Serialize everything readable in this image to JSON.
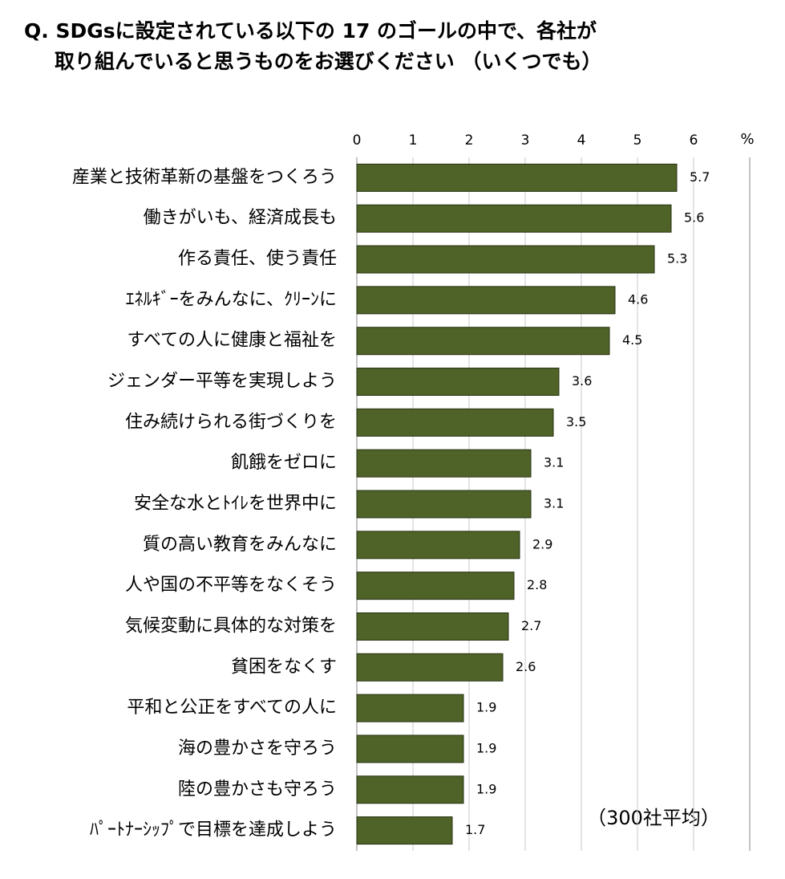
{
  "chart_data": {
    "type": "bar",
    "orientation": "horizontal",
    "title": [
      "Q. SDGsに設定されている以下の 17 のゴールの中で、各社が",
      "取り組んでいると思うものをお選びください （いくつでも）"
    ],
    "x_unit": "%",
    "annotation": "（300社平均）",
    "categories": [
      "産業と技術革新の基盤をつくろう",
      "働きがいも、経済成長も",
      "作る責任、使う責任",
      "ｴﾈﾙｷﾞｰをみんなに、ｸﾘｰﾝに",
      "すべての人に健康と福祉を",
      "ジェンダー平等を実現しよう",
      "住み続けられる街づくりを",
      "飢餓をゼロに",
      "安全な水とﾄｲﾚを世界中に",
      "質の高い教育をみんなに",
      "人や国の不平等をなくそう",
      "気候変動に具体的な対策を",
      "貧困をなくす",
      "平和と公正をすべての人に",
      "海の豊かさを守ろう",
      "陸の豊かさも守ろう",
      "ﾊﾟｰﾄﾅｰｼｯﾌﾟで目標を達成しよう"
    ],
    "values": [
      5.7,
      5.6,
      5.3,
      4.6,
      4.5,
      3.6,
      3.5,
      3.1,
      3.1,
      2.9,
      2.8,
      2.7,
      2.6,
      1.9,
      1.9,
      1.9,
      1.7
    ],
    "color": "#4f6228",
    "xlim": [
      0,
      7
    ],
    "xticks": [
      0,
      1,
      2,
      3,
      4,
      5,
      6
    ],
    "grid": true
  }
}
